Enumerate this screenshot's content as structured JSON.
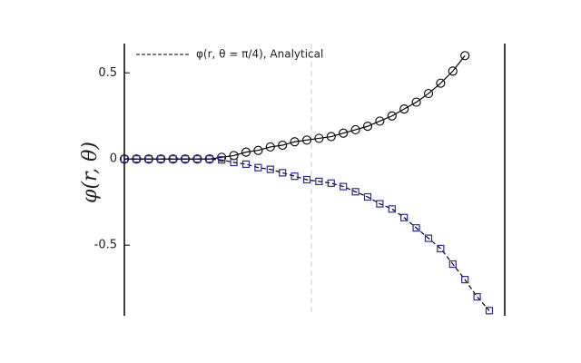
{
  "chart_data": {
    "type": "line",
    "y_label": "φ(r, θ)",
    "categories": [
      null,
      null,
      null,
      null,
      null,
      null,
      null,
      null,
      null,
      null,
      null,
      null,
      null,
      null,
      null,
      null,
      null,
      null,
      null,
      null,
      null,
      null,
      null,
      null,
      null,
      null,
      null,
      null,
      null,
      null,
      null
    ],
    "series": [
      {
        "color": "#111111",
        "marker": "circle",
        "dash": false,
        "values": [
          0,
          0,
          0,
          0,
          0,
          0,
          0,
          0,
          0.01,
          0.02,
          0.04,
          0.05,
          0.07,
          0.08,
          0.1,
          0.11,
          0.12,
          0.13,
          0.15,
          0.17,
          0.19,
          0.22,
          0.25,
          0.29,
          0.33,
          0.38,
          0.44,
          0.51,
          0.6,
          null,
          null
        ]
      },
      {
        "name": "φ(r, θ = π/4), Analytical",
        "color": "#2b2f8f",
        "marker": "square",
        "dash": true,
        "values": [
          0,
          0,
          0,
          0,
          0,
          0,
          0,
          0,
          -0.005,
          -0.02,
          -0.03,
          -0.05,
          -0.06,
          -0.08,
          -0.1,
          -0.12,
          -0.13,
          -0.14,
          -0.16,
          -0.19,
          -0.22,
          -0.26,
          -0.29,
          -0.34,
          -0.4,
          -0.46,
          -0.52,
          -0.61,
          -0.7,
          -0.8,
          -0.88
        ]
      }
    ],
    "ylim": [
      -0.91,
      0.67
    ],
    "yticks": [
      -0.5,
      0,
      0.5
    ]
  }
}
